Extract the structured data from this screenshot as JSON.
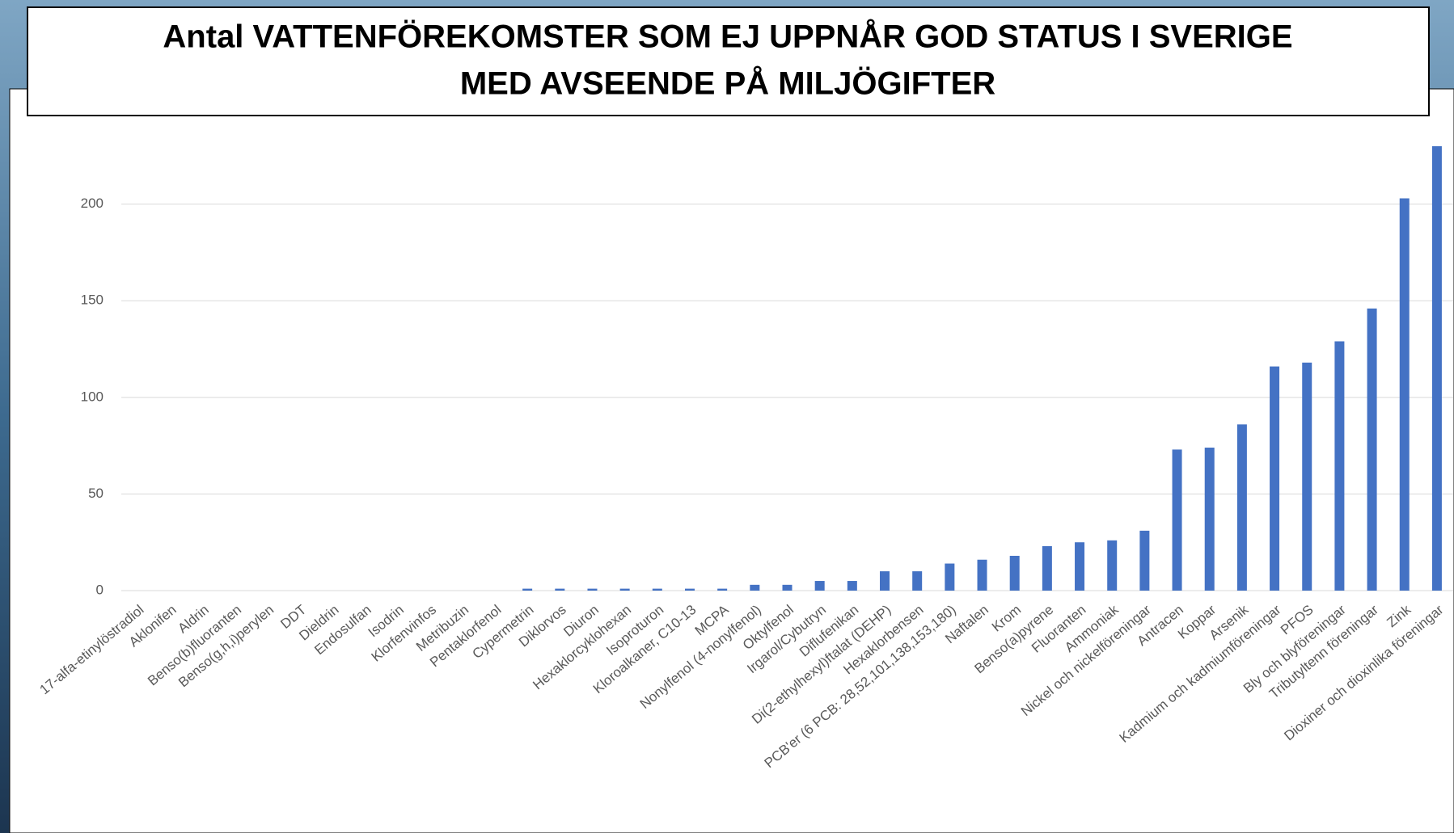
{
  "chart_data": {
    "type": "bar",
    "title": [
      "Antal VATTENFÖREKOMSTER SOM EJ UPPNÅR GOD STATUS I SVERIGE",
      "MED AVSEENDE PÅ MILJÖGIFTER"
    ],
    "categories": [
      "17-alfa-etinylöstradiol",
      "Aklonifen",
      "Aldrin",
      "Benso(b)fluoranten",
      "Benso(g,h,i)perylen",
      "DDT",
      "Dieldrin",
      "Endosulfan",
      "Isodrin",
      "Klorfenvinfos",
      "Metribuzin",
      "Pentaklorfenol",
      "Cypermetrin",
      "Diklorvos",
      "Diuron",
      "Hexaklorcyklohexan",
      "Isoproturon",
      "Kloroalkaner, C10-13",
      "MCPA",
      "Nonylfenol (4-nonylfenol)",
      "Oktylfenol",
      "Irgarol/Cybutryn",
      "Diflufenikan",
      "Di(2-ethylhexyl)ftalat (DEHP)",
      "Hexaklorbensen",
      "PCB'er (6 PCB: 28,52,101,138,153,180)",
      "Naftalen",
      "Krom",
      "Benso(a)pyrene",
      "Fluoranten",
      "Ammoniak",
      "Nickel och nickelföreningar",
      "Antracen",
      "Koppar",
      "Arsenik",
      "Kadmium och kadmiumföreningar",
      "PFOS",
      "Bly och blyföreningar",
      "Tributyltenn föreningar",
      "Zink",
      "Dioxiner och dioxinlika föreningar"
    ],
    "values": [
      0,
      0,
      0,
      0,
      0,
      0,
      0,
      0,
      0,
      0,
      0,
      0,
      1,
      1,
      1,
      1,
      1,
      1,
      1,
      3,
      3,
      5,
      5,
      10,
      10,
      14,
      16,
      18,
      23,
      25,
      26,
      31,
      73,
      74,
      86,
      116,
      118,
      129,
      146,
      203,
      230
    ],
    "color": "#4472c4",
    "ylim": [
      0,
      240
    ],
    "yticks": [
      0,
      50,
      100,
      150,
      200
    ],
    "grid": true
  }
}
